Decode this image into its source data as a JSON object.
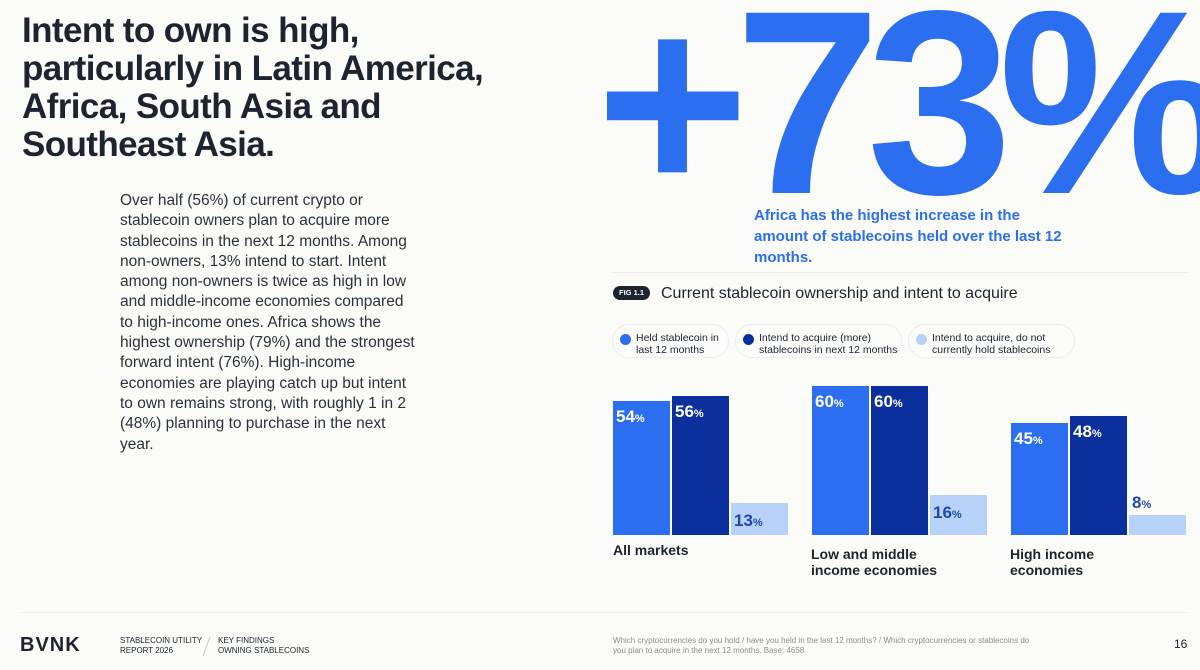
{
  "headline": "Intent to own is high, particularly in Latin America, Africa, South Asia and Southeast Asia.",
  "body": "Over half (56%) of current crypto or stablecoin owners plan to acquire more stablecoins in the next 12 months. Among non-owners, 13% intend to start. Intent among non-owners is twice as high in low and middle-income economies compared to high-income ones. Africa shows the highest ownership (79%) and the strongest forward intent (76%). High-income economies are playing catch up but intent to own remains strong, with roughly 1 in 2 (48%) planning to purchase in the next year.",
  "stat": {
    "value": "+73%",
    "caption": "Africa has the highest increase in the amount of stablecoins held over the last 12 months."
  },
  "figure": {
    "tag": "FIG 1.1",
    "title": "Current stablecoin ownership and intent to acquire"
  },
  "colors": {
    "held": "#2b6ef0",
    "intend_more": "#0b2f9c",
    "intend_new": "#b7d2f8",
    "accent": "#2b6ef0",
    "text": "#1c2430"
  },
  "chart_data": {
    "type": "bar",
    "title": "Current stablecoin ownership and intent to acquire",
    "categories": [
      "All markets",
      "Low and middle\nincome economies",
      "High income\neconomies"
    ],
    "series": [
      {
        "name": "Held stablecoin in\nlast 12 months",
        "values": [
          54,
          60,
          45
        ]
      },
      {
        "name": "Intend to acquire (more)\nstablecoins in next 12 months",
        "values": [
          56,
          60,
          48
        ]
      },
      {
        "name": "Intend to acquire, do not\ncurrently hold stablecoins",
        "values": [
          13,
          16,
          8
        ]
      }
    ],
    "unit": "%",
    "ylim": [
      0,
      60
    ],
    "legend": "top"
  },
  "footer": {
    "logo": "BVNK",
    "report": "STABLECOIN UTILITY\nREPORT 2026",
    "section": "KEY FINDINGS\nOWNING STABLECOINS",
    "source": "Which cryptocurrencies do you hold / have you held in the last 12 months? / Which cryptocurrencies or stablecoins do you plan to acquire in the next 12 months. Base: 4658",
    "page": "16"
  }
}
